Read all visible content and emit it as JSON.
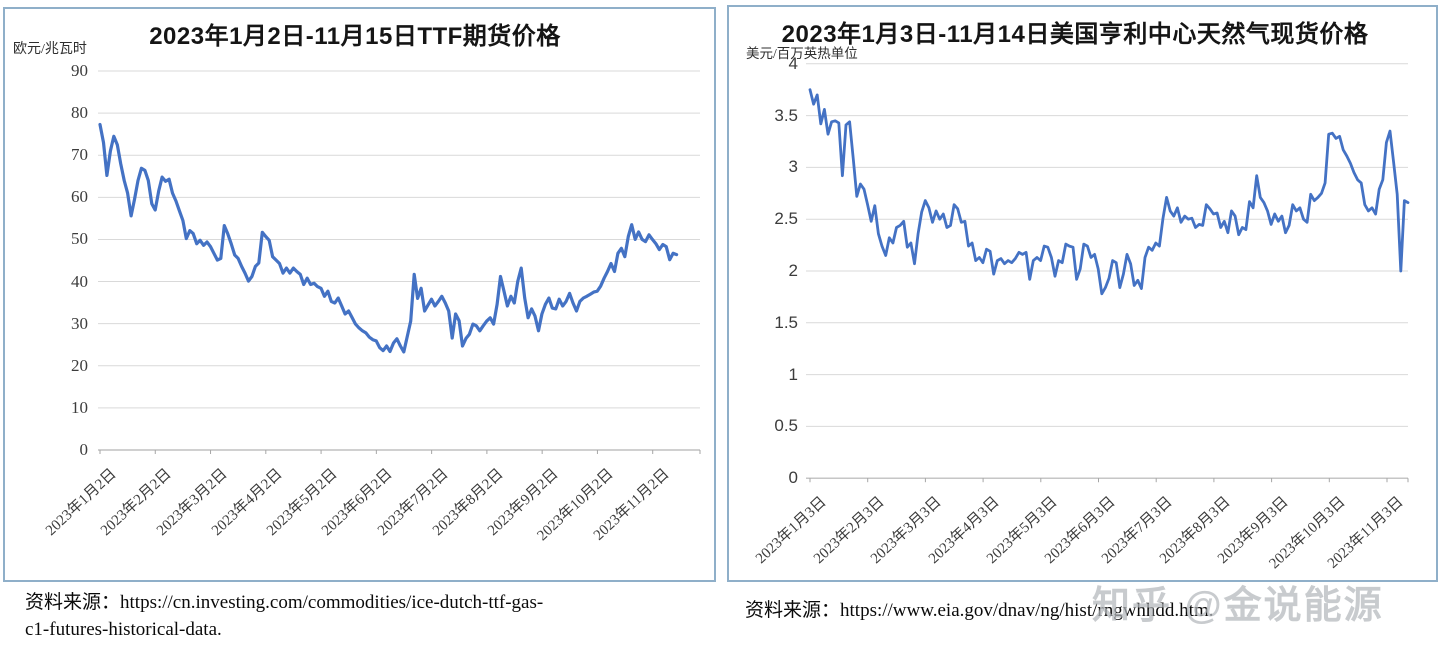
{
  "watermark": "知乎 @金说能源",
  "sources": {
    "left_prefix": "资料来源：",
    "left_line1": "https://cn.investing.com/commodities/ice-dutch-ttf-gas-",
    "left_line2": "c1-futures-historical-data.",
    "right_prefix": "资料来源：",
    "right_line1": "https://www.eia.gov/dnav/ng/hist/rngwhhdd.htm."
  },
  "chart_data": [
    {
      "type": "line",
      "title": "2023年1月2日-11月15日TTF期货价格",
      "ylabel": "欧元/兆瓦时",
      "xlabel": "",
      "ylim": [
        0,
        90
      ],
      "grid": true,
      "legend": "none",
      "y_tick_labels": [
        "0",
        "10",
        "20",
        "30",
        "40",
        "50",
        "60",
        "70",
        "80",
        "90"
      ],
      "x_tick_labels": [
        "2023年1月2日",
        "2023年2月2日",
        "2023年3月2日",
        "2023年4月2日",
        "2023年5月2日",
        "2023年6月2日",
        "2023年7月2日",
        "2023年8月2日",
        "2023年9月2日",
        "2023年10月2日",
        "2023年11月2日"
      ],
      "series": [
        {
          "name": "TTF期货价格",
          "color": "#4472c4",
          "values": [
            77.3,
            73.0,
            65.2,
            71.0,
            74.5,
            72.5,
            68.0,
            64.0,
            61.0,
            55.6,
            59.5,
            64.0,
            66.9,
            66.4,
            64.0,
            58.5,
            57.0,
            61.5,
            64.8,
            63.8,
            64.3,
            61.0,
            59.1,
            56.8,
            54.5,
            50.2,
            52.1,
            51.4,
            49.0,
            49.8,
            48.6,
            49.4,
            48.3,
            46.7,
            45.1,
            45.5,
            53.3,
            51.4,
            49.0,
            46.3,
            45.5,
            43.6,
            42.0,
            40.1,
            41.2,
            43.6,
            44.4,
            51.7,
            50.7,
            49.8,
            45.9,
            45.1,
            44.3,
            42.0,
            43.2,
            42.0,
            43.2,
            42.4,
            41.7,
            39.3,
            40.8,
            39.3,
            39.6,
            38.8,
            38.4,
            36.5,
            37.7,
            35.3,
            34.9,
            36.1,
            34.2,
            32.3,
            33.0,
            31.5,
            29.9,
            29.0,
            28.3,
            27.8,
            26.8,
            26.2,
            25.9,
            24.3,
            23.6,
            24.7,
            23.4,
            25.4,
            26.4,
            24.7,
            23.3,
            27.0,
            30.6,
            41.7,
            36.0,
            38.4,
            33.0,
            34.4,
            35.8,
            34.2,
            35.3,
            36.5,
            34.9,
            33.0,
            26.6,
            32.3,
            30.7,
            24.7,
            26.5,
            27.5,
            29.9,
            29.5,
            28.3,
            29.5,
            30.6,
            31.4,
            29.9,
            34.6,
            41.2,
            37.7,
            34.2,
            36.5,
            34.9,
            40.1,
            43.2,
            36.1,
            31.4,
            33.5,
            31.8,
            28.3,
            32.3,
            34.6,
            36.1,
            33.7,
            33.5,
            35.8,
            34.2,
            35.3,
            37.2,
            34.9,
            33.0,
            35.3,
            36.1,
            36.5,
            37.0,
            37.5,
            37.7,
            38.9,
            40.8,
            42.4,
            44.3,
            42.4,
            46.7,
            47.9,
            45.9,
            50.7,
            53.5,
            50.0,
            51.8,
            50.0,
            49.5,
            51.1,
            50.0,
            49.0,
            47.6,
            48.8,
            48.3,
            45.2,
            46.7,
            46.4
          ]
        }
      ]
    },
    {
      "type": "line",
      "title": "2023年1月3日-11月14日美国亨利中心天然气现货价格",
      "ylabel": "美元/百万英热单位",
      "xlabel": "",
      "ylim": [
        0,
        4
      ],
      "grid": true,
      "legend": "none",
      "y_tick_labels": [
        "0",
        "0.5",
        "1",
        "1.5",
        "2",
        "2.5",
        "3",
        "3.5",
        "4"
      ],
      "x_tick_labels": [
        "2023年1月3日",
        "2023年2月3日",
        "2023年3月3日",
        "2023年4月3日",
        "2023年5月3日",
        "2023年6月3日",
        "2023年7月3日",
        "2023年8月3日",
        "2023年9月3日",
        "2023年10月3日",
        "2023年11月3日"
      ],
      "series": [
        {
          "name": "亨利中心天然气现货价格",
          "color": "#4472c4",
          "values": [
            3.75,
            3.61,
            3.7,
            3.42,
            3.56,
            3.32,
            3.44,
            3.45,
            3.43,
            2.92,
            3.41,
            3.44,
            3.09,
            2.72,
            2.84,
            2.79,
            2.64,
            2.48,
            2.63,
            2.36,
            2.24,
            2.15,
            2.32,
            2.27,
            2.42,
            2.44,
            2.48,
            2.23,
            2.27,
            2.07,
            2.36,
            2.57,
            2.68,
            2.61,
            2.47,
            2.58,
            2.5,
            2.55,
            2.42,
            2.44,
            2.64,
            2.6,
            2.47,
            2.48,
            2.24,
            2.27,
            2.1,
            2.13,
            2.08,
            2.21,
            2.19,
            1.97,
            2.1,
            2.12,
            2.07,
            2.1,
            2.08,
            2.12,
            2.18,
            2.16,
            2.18,
            1.92,
            2.1,
            2.13,
            2.1,
            2.24,
            2.23,
            2.13,
            1.95,
            2.1,
            2.08,
            2.26,
            2.24,
            2.23,
            1.92,
            2.02,
            2.26,
            2.24,
            2.13,
            2.16,
            2.02,
            1.78,
            1.84,
            1.93,
            2.1,
            2.08,
            1.84,
            1.97,
            2.16,
            2.07,
            1.86,
            1.91,
            1.83,
            2.13,
            2.23,
            2.2,
            2.27,
            2.24,
            2.51,
            2.71,
            2.58,
            2.53,
            2.61,
            2.47,
            2.53,
            2.5,
            2.51,
            2.42,
            2.45,
            2.44,
            2.64,
            2.6,
            2.55,
            2.56,
            2.42,
            2.48,
            2.37,
            2.58,
            2.53,
            2.35,
            2.42,
            2.4,
            2.67,
            2.61,
            2.92,
            2.71,
            2.66,
            2.58,
            2.45,
            2.55,
            2.48,
            2.53,
            2.37,
            2.44,
            2.64,
            2.58,
            2.61,
            2.5,
            2.47,
            2.74,
            2.68,
            2.71,
            2.75,
            2.85,
            3.32,
            3.33,
            3.28,
            3.3,
            3.17,
            3.11,
            3.04,
            2.95,
            2.88,
            2.85,
            2.64,
            2.58,
            2.61,
            2.55,
            2.79,
            2.88,
            3.24,
            3.35,
            3.05,
            2.74,
            2.0,
            2.68,
            2.66
          ]
        }
      ]
    }
  ]
}
